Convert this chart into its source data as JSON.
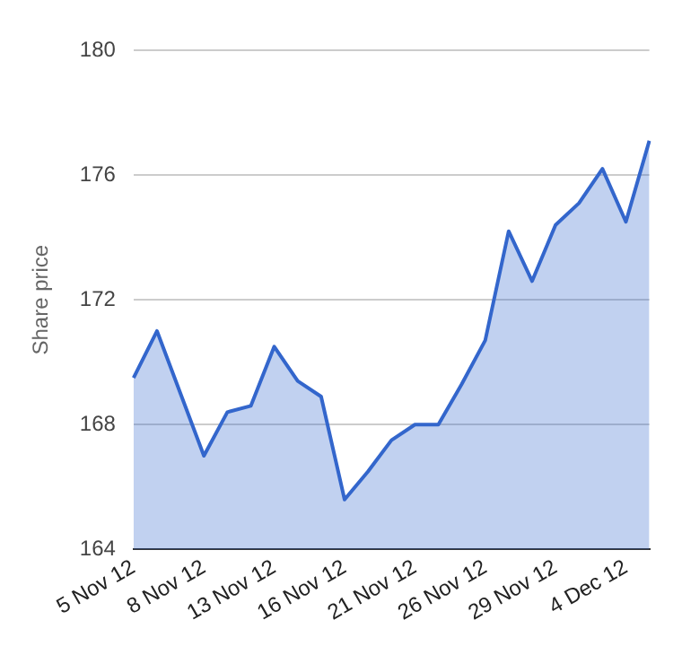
{
  "chart_data": {
    "type": "area",
    "ylabel": "Share price",
    "categories": [
      "5 Nov 12",
      null,
      null,
      "8 Nov 12",
      null,
      null,
      "13 Nov 12",
      null,
      null,
      "16 Nov 12",
      null,
      null,
      "21 Nov 12",
      null,
      null,
      "26 Nov 12",
      null,
      null,
      "29 Nov 12",
      null,
      null,
      "4 Dec 12",
      null
    ],
    "series": [
      {
        "color": "#3366cc",
        "values": [
          169.5,
          171.0,
          169.0,
          167.0,
          168.4,
          168.6,
          170.5,
          169.4,
          168.9,
          165.6,
          166.5,
          167.5,
          168.0,
          168.0,
          169.3,
          170.7,
          174.2,
          172.6,
          174.4,
          175.1,
          176.2,
          174.5,
          177.1
        ]
      }
    ],
    "ylim": [
      164,
      180
    ],
    "yticks": [
      164,
      168,
      172,
      176,
      180
    ],
    "grid": "y",
    "legend": false
  }
}
